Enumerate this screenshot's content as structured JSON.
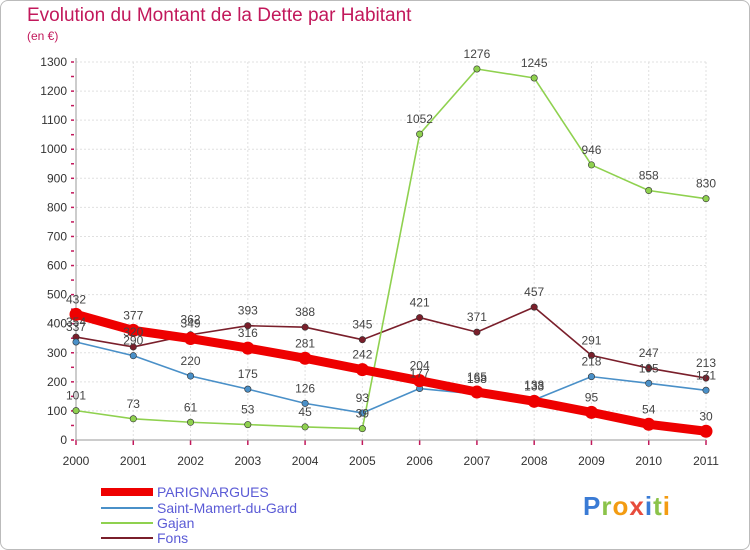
{
  "chart_data": {
    "type": "line",
    "title": "Evolution du Montant de la Dette par Habitant",
    "ylabel": "(en €)",
    "xlabel": "",
    "categories": [
      "2000",
      "2001",
      "2002",
      "2003",
      "2004",
      "2005",
      "2006",
      "2007",
      "2008",
      "2009",
      "2010",
      "2011"
    ],
    "ylim": [
      0,
      1300
    ],
    "yticks": [
      0,
      100,
      200,
      300,
      400,
      500,
      600,
      700,
      800,
      900,
      1000,
      1100,
      1200,
      1300
    ],
    "series": [
      {
        "name": "Fons",
        "color": "#7a1f2b",
        "values": [
          354,
          320,
          362,
          393,
          388,
          345,
          421,
          371,
          457,
          291,
          247,
          213
        ]
      },
      {
        "name": "Gajan",
        "color": "#8fd14f",
        "values": [
          101,
          73,
          61,
          53,
          45,
          39,
          1052,
          1276,
          1245,
          946,
          858,
          830
        ]
      },
      {
        "name": "Saint-Mamert-du-Gard",
        "color": "#4a90c8",
        "values": [
          337,
          290,
          220,
          175,
          126,
          93,
          177,
          158,
          138,
          218,
          195,
          171
        ]
      },
      {
        "name": "PARIGNARGUES",
        "color": "#ee0000",
        "values": [
          432,
          377,
          349,
          316,
          281,
          242,
          204,
          165,
          133,
          95,
          54,
          30
        ]
      }
    ]
  },
  "legend": {
    "items": [
      {
        "label": "PARIGNARGUES",
        "color": "#ee0000"
      },
      {
        "label": "Saint-Mamert-du-Gard",
        "color": "#4a90c8"
      },
      {
        "label": "Gajan",
        "color": "#8fd14f"
      },
      {
        "label": "Fons",
        "color": "#7a1f2b"
      }
    ]
  },
  "logo": {
    "text": "Proxiti"
  }
}
